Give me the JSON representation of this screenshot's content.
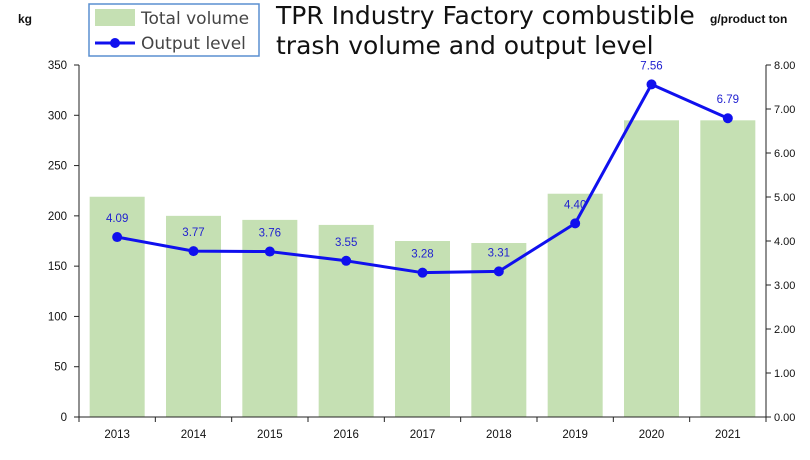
{
  "chart_data": {
    "type": "bar",
    "title_lines": [
      "TPR Industry Factory combustible",
      "trash volume and output level"
    ],
    "categories": [
      "2013",
      "2014",
      "2015",
      "2016",
      "2017",
      "2018",
      "2019",
      "2020",
      "2021"
    ],
    "series": [
      {
        "name": "Total volume",
        "type": "bar",
        "axis": "left",
        "color": "#c5e0b3",
        "values": [
          219,
          200,
          196,
          191,
          175,
          173,
          222,
          295,
          295
        ]
      },
      {
        "name": "Output level",
        "type": "line",
        "axis": "right",
        "color": "#1010ee",
        "values": [
          4.09,
          3.77,
          3.76,
          3.55,
          3.28,
          3.31,
          4.4,
          7.56,
          6.79
        ],
        "labels": [
          "4.09",
          "3.77",
          "3.76",
          "3.55",
          "3.28",
          "3.31",
          "4.40",
          "7.56",
          "6.79"
        ]
      }
    ],
    "ylabel_left": "kg",
    "ylabel_right": "g/product ton",
    "ylim_left": [
      0,
      350
    ],
    "yticks_left": [
      "0",
      "50",
      "100",
      "150",
      "200",
      "250",
      "300",
      "350"
    ],
    "ylim_right": [
      0,
      8
    ],
    "yticks_right": [
      "0.00",
      "1.00",
      "2.00",
      "3.00",
      "4.00",
      "5.00",
      "6.00",
      "7.00",
      "8.00"
    ],
    "grid": false,
    "legend_position": "top-left"
  }
}
